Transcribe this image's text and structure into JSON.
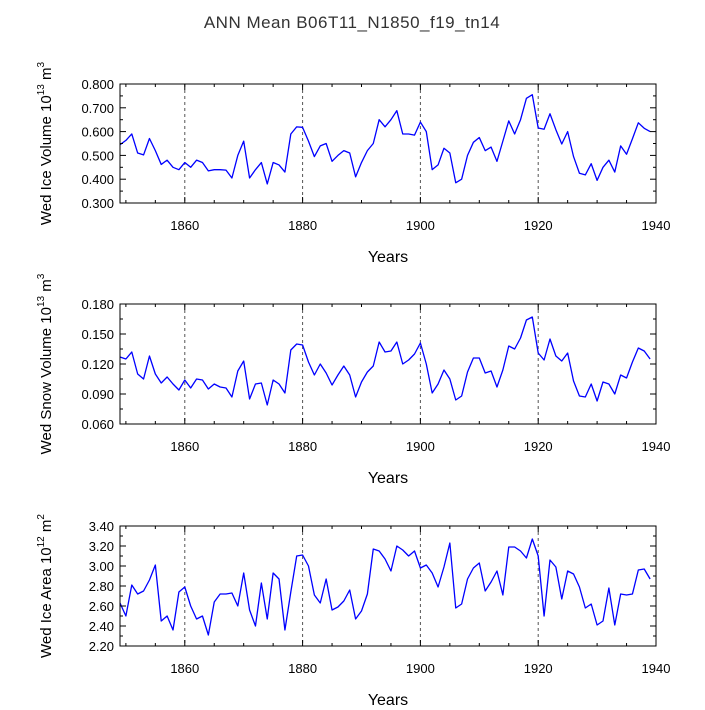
{
  "title": "ANN Mean B06T11_N1850_f19_tn14",
  "line_color": "#0000ff",
  "chart_data": [
    {
      "type": "line",
      "ylabel_main": "Wed Ice Volume 10",
      "ylabel_exp1": "13",
      "ylabel_unit": "m",
      "ylabel_exp2": "3",
      "xlabel": "Years",
      "xlim": [
        1849,
        1940
      ],
      "ylim": [
        0.3,
        0.8
      ],
      "x_ticks": [
        "1860",
        "1880",
        "1900",
        "1920",
        "1940"
      ],
      "y_ticks": [
        "0.300",
        "0.400",
        "0.500",
        "0.600",
        "0.700",
        "0.800"
      ],
      "grid_x": [
        1860,
        1880,
        1900,
        1920
      ],
      "x_start": 1849,
      "series": [
        {
          "values": [
            0.545,
            0.563,
            0.59,
            0.51,
            0.502,
            0.571,
            0.52,
            0.462,
            0.48,
            0.45,
            0.44,
            0.47,
            0.45,
            0.48,
            0.47,
            0.435,
            0.44,
            0.44,
            0.438,
            0.405,
            0.5,
            0.56,
            0.405,
            0.44,
            0.47,
            0.38,
            0.47,
            0.46,
            0.43,
            0.59,
            0.62,
            0.618,
            0.56,
            0.495,
            0.54,
            0.55,
            0.475,
            0.5,
            0.52,
            0.51,
            0.41,
            0.47,
            0.52,
            0.55,
            0.65,
            0.62,
            0.65,
            0.688,
            0.59,
            0.59,
            0.585,
            0.64,
            0.6,
            0.44,
            0.46,
            0.53,
            0.51,
            0.385,
            0.4,
            0.5,
            0.555,
            0.575,
            0.52,
            0.535,
            0.475,
            0.56,
            0.645,
            0.59,
            0.65,
            0.74,
            0.755,
            0.615,
            0.61,
            0.675,
            0.608,
            0.548,
            0.6,
            0.495,
            0.425,
            0.418,
            0.465,
            0.395,
            0.45,
            0.48,
            0.43,
            0.54,
            0.505,
            0.57,
            0.637,
            0.614,
            0.6
          ]
        }
      ]
    },
    {
      "type": "line",
      "ylabel_main": "Wed Snow Volume 10",
      "ylabel_exp1": "13",
      "ylabel_unit": "m",
      "ylabel_exp2": "3",
      "xlabel": "Years",
      "xlim": [
        1849,
        1940
      ],
      "ylim": [
        0.06,
        0.18
      ],
      "x_ticks": [
        "1860",
        "1880",
        "1900",
        "1920",
        "1940"
      ],
      "y_ticks": [
        "0.060",
        "0.090",
        "0.120",
        "0.150",
        "0.180"
      ],
      "grid_x": [
        1860,
        1880,
        1900,
        1920
      ],
      "x_start": 1849,
      "series": [
        {
          "values": [
            0.127,
            0.125,
            0.132,
            0.11,
            0.105,
            0.128,
            0.11,
            0.101,
            0.107,
            0.1,
            0.094,
            0.104,
            0.096,
            0.105,
            0.104,
            0.095,
            0.1,
            0.097,
            0.096,
            0.087,
            0.113,
            0.123,
            0.085,
            0.1,
            0.101,
            0.079,
            0.104,
            0.1,
            0.091,
            0.134,
            0.14,
            0.139,
            0.122,
            0.109,
            0.12,
            0.111,
            0.099,
            0.109,
            0.118,
            0.109,
            0.087,
            0.102,
            0.112,
            0.118,
            0.142,
            0.132,
            0.133,
            0.142,
            0.12,
            0.124,
            0.13,
            0.141,
            0.12,
            0.091,
            0.1,
            0.114,
            0.105,
            0.084,
            0.088,
            0.112,
            0.126,
            0.126,
            0.111,
            0.113,
            0.097,
            0.114,
            0.138,
            0.135,
            0.146,
            0.164,
            0.167,
            0.131,
            0.124,
            0.145,
            0.128,
            0.123,
            0.131,
            0.103,
            0.088,
            0.087,
            0.1,
            0.083,
            0.102,
            0.1,
            0.09,
            0.109,
            0.106,
            0.122,
            0.136,
            0.133,
            0.125
          ]
        }
      ]
    },
    {
      "type": "line",
      "ylabel_main": "Wed Ice Area 10",
      "ylabel_exp1": "12",
      "ylabel_unit": "m",
      "ylabel_exp2": "2",
      "xlabel": "Years",
      "xlim": [
        1849,
        1940
      ],
      "ylim": [
        2.2,
        3.4
      ],
      "x_ticks": [
        "1860",
        "1880",
        "1900",
        "1920",
        "1940"
      ],
      "y_ticks": [
        "2.20",
        "2.40",
        "2.60",
        "2.80",
        "3.00",
        "3.20",
        "3.40"
      ],
      "grid_x": [
        1860,
        1880,
        1900,
        1920
      ],
      "x_start": 1849,
      "series": [
        {
          "values": [
            2.63,
            2.5,
            2.81,
            2.72,
            2.75,
            2.86,
            3.01,
            2.45,
            2.5,
            2.36,
            2.74,
            2.79,
            2.6,
            2.47,
            2.5,
            2.31,
            2.64,
            2.72,
            2.72,
            2.73,
            2.6,
            2.93,
            2.56,
            2.4,
            2.83,
            2.47,
            2.93,
            2.87,
            2.36,
            2.74,
            3.1,
            3.11,
            3.0,
            2.71,
            2.63,
            2.87,
            2.56,
            2.59,
            2.65,
            2.76,
            2.47,
            2.55,
            2.72,
            3.17,
            3.15,
            3.07,
            2.95,
            3.2,
            3.16,
            3.1,
            3.15,
            2.98,
            3.01,
            2.93,
            2.79,
            2.99,
            3.23,
            2.58,
            2.62,
            2.87,
            2.98,
            3.03,
            2.75,
            2.84,
            2.95,
            2.71,
            3.19,
            3.19,
            3.15,
            3.08,
            3.27,
            3.1,
            2.5,
            3.06,
            2.99,
            2.67,
            2.95,
            2.92,
            2.79,
            2.58,
            2.62,
            2.41,
            2.45,
            2.78,
            2.41,
            2.72,
            2.71,
            2.72,
            2.96,
            2.97,
            2.87
          ]
        }
      ]
    }
  ]
}
